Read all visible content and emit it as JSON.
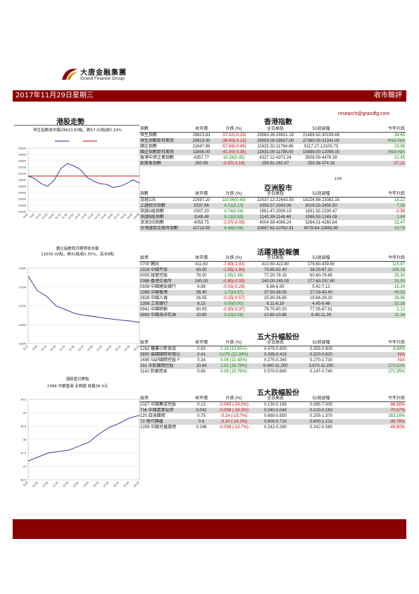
{
  "brand": {
    "cn": "大唐金融集團",
    "en": "Grand Finance Group"
  },
  "header": {
    "date": "2017年11月29日星期三",
    "title": "收市簡評"
  },
  "contact": {
    "email": "research@grandfg.com"
  },
  "hk_trend": {
    "title": "港股走勢",
    "subtitle": "恒生指數收市報29623.83點，跌57.02點或0.19%"
  },
  "hk_index": {
    "title": "香港指數",
    "headers": [
      "指數",
      "收市價",
      "升跌 (%)",
      "全日高低",
      "52週波幅",
      "今年升跌"
    ],
    "rows": [
      {
        "name": "恒生指數",
        "close": "29623.83",
        "chg": "-57.02(-0.19)",
        "range": "29563.39-29831.19",
        "w52": "21488.82-30199.69",
        "ytd": "34.65",
        "hl": false
      },
      {
        "name": "恒生指數即月期貨",
        "close": "29623.00",
        "chg": "-36.00(-0.12)",
        "range": "29559.00-29837.00",
        "w52": "27360.00-31341.00",
        "ytd": "#N/A N/A",
        "hl": true
      },
      {
        "name": "國企指數",
        "close": "11647.98",
        "chg": "-57.69(-0.49)",
        "range": "11623.32-11784.86",
        "w52": "9117.27-12100.73",
        "ytd": "23.98",
        "hl": false
      },
      {
        "name": "國企指數即月期貨",
        "close": "11656.00",
        "chg": "-41.00(-0.35)",
        "range": "11631.00-11785.00",
        "w52": "10888.00-12095.00",
        "ytd": "#N/A N/A",
        "hl": true
      },
      {
        "name": "香港中資企業指數",
        "close": "4357.77",
        "chg": "15.28(0.35)",
        "range": "4327.12-4371.24",
        "w52": "3508.59-4478.39",
        "ytd": "21.45",
        "hl": false
      },
      {
        "name": "創業板指數",
        "close": "260.99",
        "chg": "-0.37(-0.14)",
        "range": "259.81-262.87",
        "w52": "259.38-374.16",
        "ytd": "-27.21",
        "hl": true
      }
    ]
  },
  "stray_label": "109",
  "asia": {
    "title": "亞洲股市",
    "headers": [
      "指數",
      "收市價",
      "升跌 (%)",
      "全日高低",
      "52週波幅",
      "今年升跌"
    ],
    "rows": [
      {
        "name": "日經225",
        "close": "22597.20",
        "chg": "110.96(0.49)",
        "range": "22537.12-22643.93",
        "w52": "18224.68-23382.15",
        "ytd": "18.22",
        "hl": false
      },
      {
        "name": "上證綜合指數",
        "close": "3337.86",
        "chg": "4.21(0.13)",
        "range": "3305.57-3343.06",
        "w52": "3016.53-3450.50",
        "ytd": "7.55",
        "hl": true
      },
      {
        "name": "深證A股指數",
        "close": "2007.20",
        "chg": "0.74(0.04)",
        "range": "1981.47-2009.19",
        "w52": "1831.92-2230.47",
        "ytd": "-2.56",
        "hl": false
      },
      {
        "name": "深證B股指數",
        "close": "1148.48",
        "chg": "6.11(0.53)",
        "range": "1140.39-1148.48",
        "w52": "1066.53-1245.08",
        "ytd": "1.84",
        "hl": true
      },
      {
        "name": "深深300指數",
        "close": "4053.75",
        "chg": "-2.07(-0.05)",
        "range": "4004.69-4069.24",
        "w52": "3264.21-4260.64",
        "ytd": "22.47",
        "hl": false
      },
      {
        "name": "台灣證券交易所指數",
        "close": "10713.55",
        "chg": "6.48(0.06)",
        "range": "10697.62-10762.91",
        "w52": "9078.64-10882.65",
        "ytd": "15.78",
        "hl": true
      }
    ]
  },
  "active": {
    "title": "活躍港股報價",
    "headers": [
      "股票",
      "收市價",
      "升跌 (%)",
      "全日高低",
      "52週波幅",
      "今年升跌"
    ],
    "rows": [
      {
        "name": "0700 騰訊",
        "close": "411.60",
        "chg": "-7.60(-1.81)",
        "range": "410.80-422.80",
        "w52": "179.60-439.60",
        "ytd": "116.97",
        "hl": false
      },
      {
        "name": "2318 中國平安",
        "close": "80.00",
        "chg": "-1.55(-1.90)",
        "range": "79.85-82.40",
        "w52": "38.00-87.10",
        "ytd": "106.19",
        "hl": true
      },
      {
        "name": "0005 匯豐控股",
        "close": "78.00",
        "chg": "1.05(1.36)",
        "range": "77.20-78.15",
        "w52": "60.60-79.65",
        "ytd": "25.30",
        "hl": false
      },
      {
        "name": "0388 香港交易所",
        "close": "240.00",
        "chg": "-0.80(-0.33)",
        "range": "240.00-245.00",
        "w52": "177.60-257.60",
        "ytd": "31.00",
        "hl": true
      },
      {
        "name": "0939 中國建設銀行",
        "close": "6.88",
        "chg": "-0.02(-0.29)",
        "range": "6.86-6.95",
        "w52": "5.42-7.12",
        "ytd": "15.24",
        "hl": false
      },
      {
        "name": "2388 中銀香港",
        "close": "38.90",
        "chg": "1.70(4.57)",
        "range": "37.50-39.05",
        "w52": "27.03-40.40",
        "ytd": "40.53",
        "hl": true
      },
      {
        "name": "2628 中國人壽",
        "close": "26.05",
        "chg": "-0.15(-0.57)",
        "range": "25.90-26.65",
        "w52": "19.84-28.20",
        "ytd": "28.96",
        "hl": false
      },
      {
        "name": "1398 工商銀行",
        "close": "6.15",
        "chg": "0.00(0.00)",
        "range": "6.11-6.19",
        "w52": "4.45-6.48",
        "ytd": "32.26",
        "hl": true
      },
      {
        "name": "0941 中國移動",
        "close": "80.05",
        "chg": "-0.30(-0.37)",
        "range": "79.70-80.20",
        "w52": "77.05-87.91",
        "ytd": "1.12",
        "hl": false
      },
      {
        "name": "0883 中國海洋石油",
        "close": "10.80",
        "chg": "0.22(2.08)",
        "range": "10.60-10.86",
        "w52": "8.45-11.28",
        "ytd": "11.34",
        "hl": true
      }
    ]
  },
  "gainers": {
    "title": "五大升幅股份",
    "headers": [
      "股票",
      "收市價",
      "升跌 (%)",
      "全日高低",
      "52週波幅",
      "今年升跌"
    ],
    "rows": [
      {
        "name": "1262 蠟筆小新食品",
        "close": "0.65",
        "chg": "0.16 (32.65%)",
        "range": "0.475-0.800",
        "w52": "0.355-0.800",
        "ytd": "4.84%",
        "hl": false
      },
      {
        "name": "3850 雲國國際有限公",
        "close": "0.41",
        "chg": "0.075 (22.39%)",
        "range": "0.335-0.415",
        "w52": "0.320-0.820",
        "ytd": "N/A",
        "hl": true
      },
      {
        "name": "1695 S&P國際控股 F",
        "close": "0.34",
        "chg": "0.06 (21.43%)",
        "range": "0.275-0.340",
        "w52": "0.270-1.730",
        "ytd": "N/A",
        "hl": false
      },
      {
        "name": "161 中航國際控股",
        "close": "10.64",
        "chg": "1.53 (16.79%)",
        "range": "9.060-11.200",
        "w52": "3.670-11.200",
        "ytd": "173.52%",
        "hl": true
      },
      {
        "name": "1141 民銀資本",
        "close": "0.66",
        "chg": "0.09 (15.79%)",
        "range": "0.570-0.680",
        "w52": "0.147-0.740",
        "ytd": "271.35%",
        "hl": false
      }
    ]
  },
  "losers": {
    "title": "五大跌幅股份",
    "headers": [
      "股票",
      "收市價",
      "升跌 (%)",
      "全日高低",
      "52週波幅",
      "今年升跌"
    ],
    "rows": [
      {
        "name": "1027 中國集成控股",
        "close": "0.13",
        "chg": "-0.045 (-24.0%)",
        "range": "0.130-0.165",
        "w52": "0.085-7.000",
        "ytd": "-96.56%",
        "hl": false
      },
      {
        "name": "736 中國置業投資",
        "close": "0.041",
        "chg": "-0.008 (-16.3%)",
        "range": "0.040-0.048",
        "w52": "0.010-0.163",
        "ytd": "-70.07%",
        "hl": true
      },
      {
        "name": "120 四海國際",
        "close": "0.75",
        "chg": "-0.14 (-15.7%)",
        "range": "0.680-0.850",
        "w52": "0.255-1.370",
        "ytd": "163.16%",
        "hl": false
      },
      {
        "name": "72 現代傳播",
        "close": "0.6",
        "chg": "-0.10 (-14.3%)",
        "range": "0.600-0.710",
        "w52": "0.600-1.210",
        "ytd": "-38.78%",
        "hl": true
      },
      {
        "name": "1259 中國兒童護理",
        "close": "0.246",
        "chg": "-0.039 (-13.7%)",
        "range": "0.242-0.280",
        "w52": "0.242-0.580",
        "ytd": "-49.80%",
        "hl": false
      }
    ]
  },
  "chart_data": [
    {
      "type": "line",
      "yticks": [
        "29900",
        "29850",
        "29800",
        "29750",
        "29700",
        "29650",
        "29600",
        "29550",
        "29500",
        "29450",
        "29400"
      ],
      "xticks": [
        "9:30",
        "9:50",
        "10:10",
        "10:30",
        "10:50",
        "11:10",
        "11:30",
        "11:50",
        "13:10",
        "13:30",
        "13:50",
        "14:10",
        "14:30",
        "14:50",
        "15:10",
        "15:30",
        "15:50",
        "16:08"
      ],
      "ylim": [
        29400,
        29900
      ],
      "colors": [
        "#1f2a8a",
        "#d00000"
      ],
      "series": [
        {
          "values": [
            29681,
            29660,
            29620,
            29600,
            29650,
            29740,
            29780,
            29760,
            29730,
            29670,
            29640,
            29620,
            29615,
            29590,
            29600,
            29620,
            29650,
            29625
          ]
        },
        {
          "values": [
            29681,
            29681,
            29681,
            29681,
            29681,
            29681,
            29681,
            29681,
            29681,
            29681,
            29681,
            29681,
            29681,
            29681,
            29681,
            29681,
            29681,
            29681
          ]
        }
      ]
    },
    {
      "type": "line",
      "title": "國企指數即月期貨收市報",
      "subtitle": "11656.00點，跌41點或0.35%，高水8點",
      "yticks": [
        "11800",
        "11750",
        "11700",
        "11650",
        "11600"
      ],
      "xticks": [
        "9:15",
        "9:45",
        "10:15",
        "10:45",
        "11:15",
        "11:45",
        "13:15",
        "13:45",
        "14:15",
        "14:45",
        "15:15",
        "15:45",
        "16:15"
      ],
      "ylim": [
        11600,
        11800
      ],
      "colors": [
        "#1f2a8a"
      ],
      "series": [
        {
          "values": [
            11778,
            11740,
            11725,
            11700,
            11690,
            11680,
            11675,
            11672,
            11668,
            11665,
            11662,
            11660,
            11656
          ]
        }
      ]
    },
    {
      "type": "line",
      "title": "港股當日焦點",
      "subtitle": "2388 中銀香港 走勢圖 收報38.9元",
      "yticks": [
        "39.5",
        "39",
        "38.5",
        "38",
        "37.5",
        "37",
        "36.5"
      ],
      "xticks": [
        "9:30",
        "10:00",
        "10:30",
        "11:00",
        "11:30",
        "12:00",
        "13:30",
        "14:00",
        "14:30",
        "15:00",
        "15:30",
        "16:00"
      ],
      "ylim": [
        36.5,
        39.5
      ],
      "colors": [
        "#1f2a8a"
      ],
      "series": [
        {
          "values": [
            37.2,
            37.35,
            37.5,
            37.55,
            37.6,
            37.75,
            37.9,
            38.2,
            38.45,
            38.6,
            38.8,
            38.9
          ]
        }
      ]
    }
  ]
}
